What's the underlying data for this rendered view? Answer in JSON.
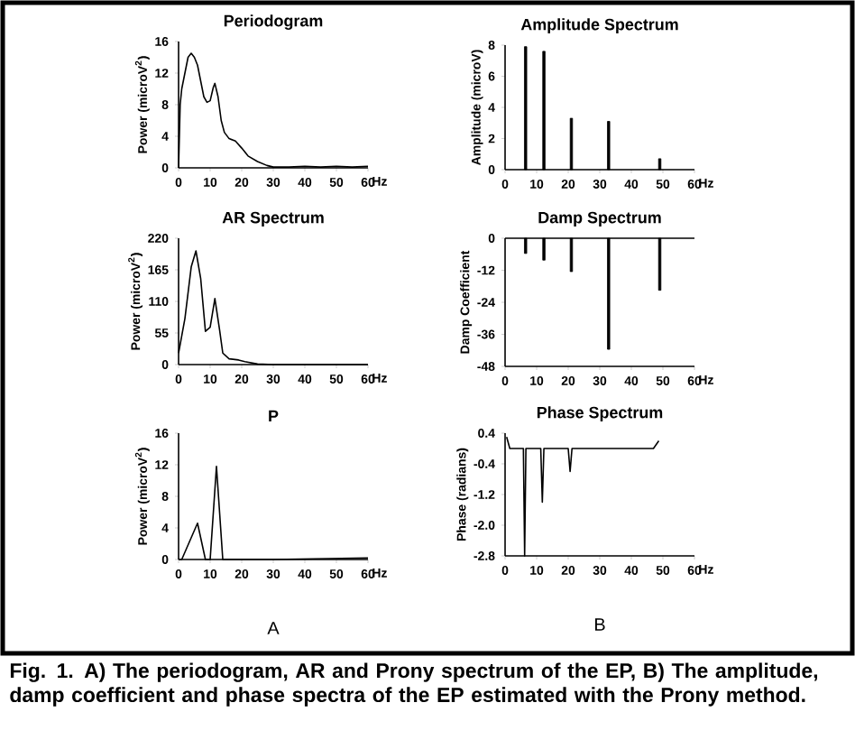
{
  "chart_data": [
    {
      "type": "line",
      "title": "Periodogram",
      "ylabel": "Power (microV$^{2}$)",
      "color": "#000000",
      "x": [
        0,
        0.5,
        1,
        2,
        3,
        4,
        5,
        6,
        7,
        8,
        9,
        10,
        11,
        11.5,
        12.5,
        13.5,
        14.5,
        16,
        18,
        20,
        22,
        25,
        28,
        30,
        35,
        40,
        45,
        50,
        55,
        60
      ],
      "values": [
        0,
        8,
        10,
        12,
        14,
        14.5,
        14,
        13,
        11,
        9,
        8.3,
        8.5,
        10.2,
        10.7,
        9,
        6,
        4.5,
        3.7,
        3.4,
        2.5,
        1.5,
        0.8,
        0.3,
        0.1,
        0.1,
        0.2,
        0.1,
        0.2,
        0.1,
        0.2
      ],
      "xlim": [
        0,
        60
      ],
      "ylim": [
        0,
        16
      ],
      "xticks": [
        0,
        10,
        20,
        30,
        40,
        50,
        60
      ],
      "xlabel": "Hz",
      "yticks": [
        0,
        4,
        8,
        12,
        16
      ]
    },
    {
      "type": "line",
      "title": "AR Spectrum",
      "ylabel": "Power (microV$^{2}$)",
      "color": "#000000",
      "x": [
        0,
        2,
        4,
        5.5,
        7,
        8.5,
        10,
        11.5,
        13,
        14,
        16,
        19,
        21,
        25,
        30,
        40,
        50,
        60
      ],
      "values": [
        20,
        80,
        170,
        198,
        150,
        58,
        65,
        115,
        60,
        20,
        10,
        8,
        5,
        1,
        0,
        0,
        0,
        0
      ],
      "xlim": [
        0,
        60
      ],
      "ylim": [
        0,
        220
      ],
      "xticks": [
        0,
        10,
        20,
        30,
        40,
        50,
        60
      ],
      "xlabel": "Hz",
      "yticks": [
        0,
        55,
        110,
        165,
        220
      ]
    },
    {
      "type": "line",
      "title": "P",
      "ylabel": "Power (microV$^{2}$)",
      "color": "#000000",
      "x": [
        0,
        1,
        6,
        8.5,
        10,
        12,
        14,
        30,
        60
      ],
      "values": [
        0,
        0,
        4.6,
        0,
        0,
        11.8,
        0,
        0,
        0.2
      ],
      "xlim": [
        0,
        60
      ],
      "ylim": [
        0,
        16
      ],
      "xticks": [
        0,
        10,
        20,
        30,
        40,
        50,
        60
      ],
      "xlabel": "Hz",
      "yticks": [
        0,
        4,
        8,
        12,
        16
      ],
      "annotations": [
        "A"
      ]
    },
    {
      "type": "bar",
      "title": "Amplitude Spectrum",
      "ylabel": "Amplitude (microV)",
      "color": "#000000",
      "x": [
        6.5,
        12.3,
        21,
        32.8,
        49
      ],
      "values": [
        7.9,
        7.6,
        3.3,
        3.1,
        0.7
      ],
      "xlim": [
        0,
        60
      ],
      "ylim": [
        0,
        8
      ],
      "xticks": [
        0,
        10,
        20,
        30,
        40,
        50,
        60
      ],
      "xlabel": "Hz",
      "yticks": [
        0,
        2,
        4,
        6,
        8
      ]
    },
    {
      "type": "bar",
      "title": "Damp Spectrum",
      "ylabel": "Damp Coefficient",
      "color": "#000000",
      "x": [
        6.5,
        12.3,
        21,
        32.8,
        49
      ],
      "values": [
        -5.7,
        -8.2,
        -12.5,
        -41.6,
        -19.5
      ],
      "xlim": [
        0,
        60
      ],
      "ylim": [
        -48,
        0
      ],
      "xticks": [
        0,
        10,
        20,
        30,
        40,
        50,
        60
      ],
      "xlabel": "Hz",
      "yticks": [
        -48,
        -36,
        -24,
        -12,
        0
      ],
      "ref_lines": [
        {
          "axis": "y",
          "value": 0
        }
      ]
    },
    {
      "type": "line",
      "title": "Phase Spectrum",
      "ylabel": "Phase (radians)",
      "color": "#000000",
      "x": [
        0.5,
        1.5,
        5.8,
        6.2,
        6.6,
        11.3,
        11.8,
        12.3,
        20,
        20.6,
        21.2,
        47,
        48.7
      ],
      "values": [
        0.3,
        0.0,
        0.0,
        -2.8,
        0.0,
        0.0,
        -1.4,
        0.0,
        0.0,
        -0.6,
        0.0,
        0.0,
        0.2
      ],
      "xlim": [
        0,
        60
      ],
      "ylim": [
        -2.8,
        0.4
      ],
      "xticks": [
        0,
        10,
        20,
        30,
        40,
        50,
        60
      ],
      "xlabel": "Hz",
      "yticks": [
        -2.8,
        {
          "value": -2.0,
          "label": "-2.0"
        },
        -1.2,
        -0.4,
        0.4
      ],
      "annotations": [
        "B",
        "Fig. 1. A) The periodogram, AR and Prony spectrum of the EP, B) The amplitude, damp coefficient and phase spectra of the EP estimated with the Prony method."
      ]
    }
  ]
}
